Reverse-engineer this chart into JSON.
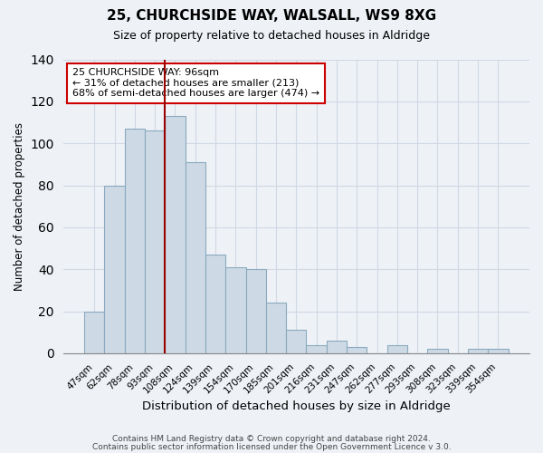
{
  "title": "25, CHURCHSIDE WAY, WALSALL, WS9 8XG",
  "subtitle": "Size of property relative to detached houses in Aldridge",
  "xlabel": "Distribution of detached houses by size in Aldridge",
  "ylabel": "Number of detached properties",
  "bar_color": "#cdd9e5",
  "bar_edge_color": "#8aaabf",
  "categories": [
    "47sqm",
    "62sqm",
    "78sqm",
    "93sqm",
    "108sqm",
    "124sqm",
    "139sqm",
    "154sqm",
    "170sqm",
    "185sqm",
    "201sqm",
    "216sqm",
    "231sqm",
    "247sqm",
    "262sqm",
    "277sqm",
    "293sqm",
    "308sqm",
    "323sqm",
    "339sqm",
    "354sqm"
  ],
  "values": [
    20,
    80,
    107,
    106,
    113,
    91,
    47,
    41,
    40,
    24,
    11,
    4,
    6,
    3,
    0,
    4,
    0,
    2,
    0,
    2,
    2
  ],
  "ylim": [
    0,
    140
  ],
  "yticks": [
    0,
    20,
    40,
    60,
    80,
    100,
    120,
    140
  ],
  "vline_x_index": 3.5,
  "vline_color": "#990000",
  "annotation_title": "25 CHURCHSIDE WAY: 96sqm",
  "annotation_line1": "← 31% of detached houses are smaller (213)",
  "annotation_line2": "68% of semi-detached houses are larger (474) →",
  "annotation_box_color": "#ffffff",
  "annotation_box_edge": "#cc0000",
  "footer1": "Contains HM Land Registry data © Crown copyright and database right 2024.",
  "footer2": "Contains public sector information licensed under the Open Government Licence v 3.0.",
  "background_color": "#eef2f7",
  "grid_color": "#d0d8e4"
}
